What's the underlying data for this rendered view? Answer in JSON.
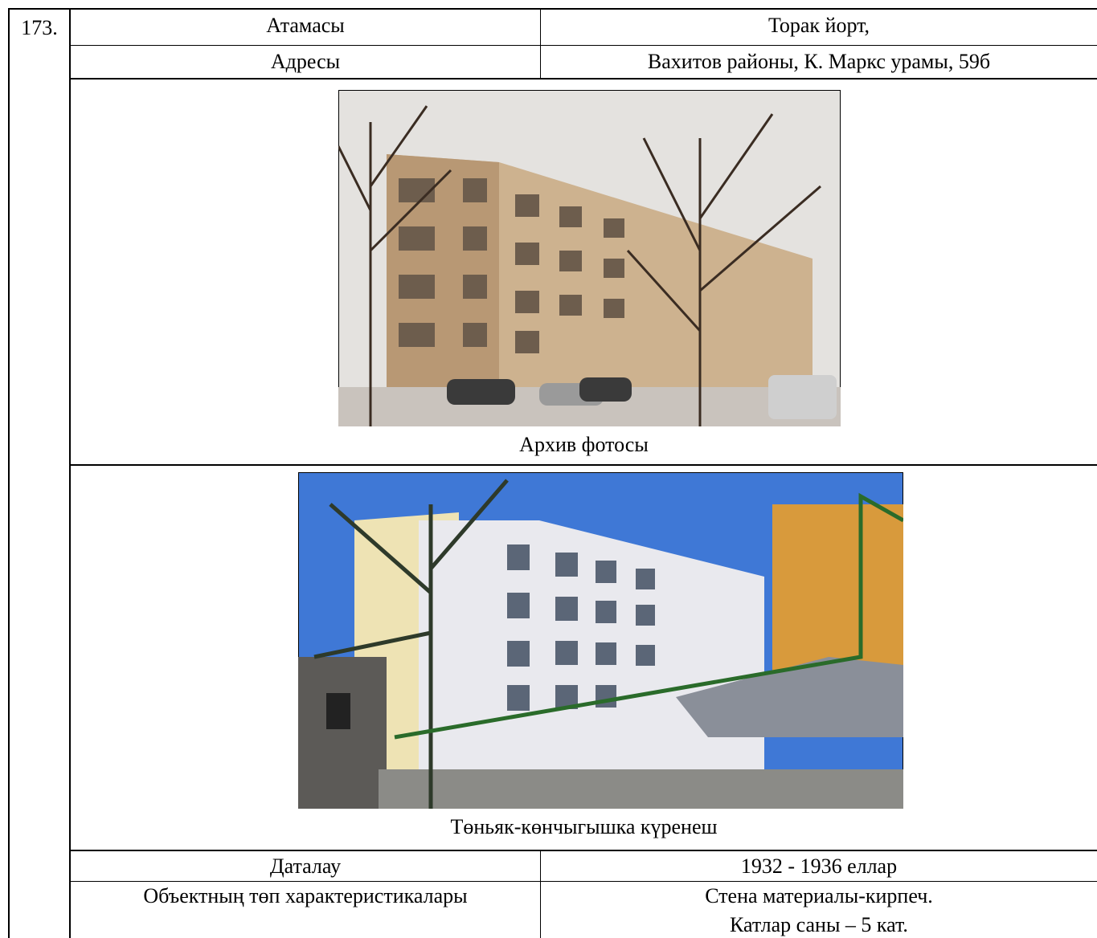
{
  "item_number": "173.",
  "table": {
    "top_rows": [
      [
        "Атамасы",
        "Торак йорт,"
      ],
      [
        "Адресы",
        "Вахитов районы, К. Маркс урамы, 59б"
      ]
    ],
    "photos": [
      {
        "caption": "Архив фотосы"
      },
      {
        "caption": "Төньяк-көнчыгышка күренеш"
      }
    ],
    "bottom_rows": [
      [
        "Даталау",
        "1932 - 1936 еллар"
      ],
      [
        "Объектның төп характеристикалары",
        "Стена материалы-кирпеч.",
        "Катлар саны – 5 кат."
      ]
    ]
  }
}
